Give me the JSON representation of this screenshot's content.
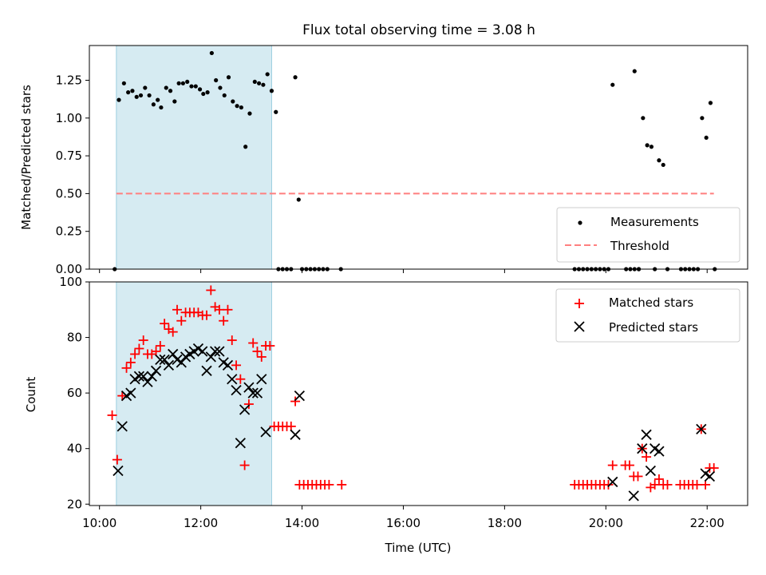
{
  "title": "Flux total observing time = 3.08 h",
  "chart_data": [
    {
      "type": "scatter",
      "ylabel": "Matched/Predicted stars",
      "xlim": [
        "09:48",
        "22:48"
      ],
      "ylim": [
        0,
        1.48
      ],
      "yticks": [
        "0.00",
        "0.25",
        "0.50",
        "0.75",
        "1.00",
        "1.25"
      ],
      "shaded_span": [
        "10:20",
        "13:24"
      ],
      "threshold": 0.5,
      "threshold_range": [
        "10:20",
        "22:08"
      ],
      "legend": {
        "placement": "lower-right",
        "entries": [
          "Measurements",
          "Threshold"
        ]
      },
      "series": [
        {
          "name": "Measurements",
          "points": [
            [
              "10:18",
              0
            ],
            [
              "10:23",
              1.12
            ],
            [
              "10:29",
              1.23
            ],
            [
              "10:34",
              1.17
            ],
            [
              "10:39",
              1.18
            ],
            [
              "10:44",
              1.14
            ],
            [
              "10:49",
              1.15
            ],
            [
              "10:54",
              1.2
            ],
            [
              "10:59",
              1.15
            ],
            [
              "11:04",
              1.09
            ],
            [
              "11:09",
              1.12
            ],
            [
              "11:13",
              1.07
            ],
            [
              "11:19",
              1.2
            ],
            [
              "11:24",
              1.18
            ],
            [
              "11:29",
              1.11
            ],
            [
              "11:34",
              1.23
            ],
            [
              "11:39",
              1.23
            ],
            [
              "11:44",
              1.24
            ],
            [
              "11:49",
              1.21
            ],
            [
              "11:54",
              1.21
            ],
            [
              "11:59",
              1.19
            ],
            [
              "12:03",
              1.16
            ],
            [
              "12:08",
              1.17
            ],
            [
              "12:13",
              1.43
            ],
            [
              "12:18",
              1.25
            ],
            [
              "12:23",
              1.2
            ],
            [
              "12:28",
              1.15
            ],
            [
              "12:33",
              1.27
            ],
            [
              "12:38",
              1.11
            ],
            [
              "12:43",
              1.08
            ],
            [
              "12:48",
              1.07
            ],
            [
              "12:53",
              0.81
            ],
            [
              "12:58",
              1.03
            ],
            [
              "13:04",
              1.24
            ],
            [
              "13:09",
              1.23
            ],
            [
              "13:14",
              1.22
            ],
            [
              "13:19",
              1.29
            ],
            [
              "13:24",
              1.18
            ],
            [
              "13:29",
              1.04
            ],
            [
              "13:32",
              0
            ],
            [
              "13:37",
              0
            ],
            [
              "13:42",
              0
            ],
            [
              "13:47",
              0
            ],
            [
              "13:52",
              1.27
            ],
            [
              "13:56",
              0.46
            ],
            [
              "14:00",
              0
            ],
            [
              "14:05",
              0
            ],
            [
              "14:10",
              0
            ],
            [
              "14:15",
              0
            ],
            [
              "14:20",
              0
            ],
            [
              "14:25",
              0
            ],
            [
              "14:30",
              0
            ],
            [
              "14:46",
              0
            ],
            [
              "19:23",
              0
            ],
            [
              "19:28",
              0
            ],
            [
              "19:33",
              0
            ],
            [
              "19:38",
              0
            ],
            [
              "19:43",
              0
            ],
            [
              "19:48",
              0
            ],
            [
              "19:53",
              0
            ],
            [
              "19:58",
              0
            ],
            [
              "20:03",
              0
            ],
            [
              "20:08",
              1.22
            ],
            [
              "20:24",
              0
            ],
            [
              "20:29",
              0
            ],
            [
              "20:34",
              0
            ],
            [
              "20:39",
              0
            ],
            [
              "20:34",
              1.31
            ],
            [
              "20:39",
              0
            ],
            [
              "20:44",
              1.0
            ],
            [
              "20:49",
              0.82
            ],
            [
              "20:54",
              0.81
            ],
            [
              "20:58",
              0
            ],
            [
              "21:03",
              0.72
            ],
            [
              "21:08",
              0.69
            ],
            [
              "21:13",
              0
            ],
            [
              "21:29",
              0
            ],
            [
              "21:34",
              0
            ],
            [
              "21:39",
              0
            ],
            [
              "21:44",
              0
            ],
            [
              "21:49",
              0
            ],
            [
              "21:54",
              1.0
            ],
            [
              "21:59",
              0.87
            ],
            [
              "22:04",
              1.1
            ],
            [
              "22:09",
              0
            ]
          ]
        }
      ]
    },
    {
      "type": "scatter",
      "xlabel": "Time (UTC)",
      "ylabel": "Count",
      "xlim": [
        "09:48",
        "22:48"
      ],
      "ylim": [
        19.5,
        100
      ],
      "xticks": [
        "10:00",
        "12:00",
        "14:00",
        "16:00",
        "18:00",
        "20:00",
        "22:00"
      ],
      "yticks": [
        "20",
        "40",
        "60",
        "80",
        "100"
      ],
      "shaded_span": [
        "10:20",
        "13:24"
      ],
      "legend": {
        "placement": "top-right",
        "entries": [
          "Matched stars",
          "Predicted stars"
        ]
      },
      "series": [
        {
          "name": "Matched stars",
          "points": [
            [
              "10:15",
              52
            ],
            [
              "10:21",
              36
            ],
            [
              "10:27",
              59
            ],
            [
              "10:32",
              69
            ],
            [
              "10:37",
              71
            ],
            [
              "10:42",
              74
            ],
            [
              "10:47",
              76
            ],
            [
              "10:52",
              79
            ],
            [
              "10:57",
              74
            ],
            [
              "11:02",
              74
            ],
            [
              "11:07",
              75
            ],
            [
              "11:12",
              77
            ],
            [
              "11:17",
              85
            ],
            [
              "11:22",
              83
            ],
            [
              "11:27",
              82
            ],
            [
              "11:32",
              90
            ],
            [
              "11:37",
              86
            ],
            [
              "11:42",
              89
            ],
            [
              "11:47",
              89
            ],
            [
              "11:52",
              89
            ],
            [
              "11:57",
              89
            ],
            [
              "12:02",
              88
            ],
            [
              "12:07",
              88
            ],
            [
              "12:12",
              97
            ],
            [
              "12:17",
              91
            ],
            [
              "12:22",
              90
            ],
            [
              "12:27",
              86
            ],
            [
              "12:32",
              90
            ],
            [
              "12:37",
              79
            ],
            [
              "12:42",
              70
            ],
            [
              "12:47",
              65
            ],
            [
              "12:52",
              34
            ],
            [
              "12:57",
              56
            ],
            [
              "13:02",
              78
            ],
            [
              "13:07",
              75
            ],
            [
              "13:12",
              73
            ],
            [
              "13:17",
              77
            ],
            [
              "13:22",
              77
            ],
            [
              "13:27",
              48
            ],
            [
              "13:32",
              48
            ],
            [
              "13:37",
              48
            ],
            [
              "13:42",
              48
            ],
            [
              "13:47",
              48
            ],
            [
              "13:52",
              57
            ],
            [
              "13:57",
              27
            ],
            [
              "14:02",
              27
            ],
            [
              "14:07",
              27
            ],
            [
              "14:12",
              27
            ],
            [
              "14:17",
              27
            ],
            [
              "14:22",
              27
            ],
            [
              "14:27",
              27
            ],
            [
              "14:32",
              27
            ],
            [
              "14:47",
              27
            ],
            [
              "19:23",
              27
            ],
            [
              "19:28",
              27
            ],
            [
              "19:33",
              27
            ],
            [
              "19:38",
              27
            ],
            [
              "19:43",
              27
            ],
            [
              "19:48",
              27
            ],
            [
              "19:53",
              27
            ],
            [
              "19:58",
              27
            ],
            [
              "20:03",
              27
            ],
            [
              "20:08",
              34
            ],
            [
              "20:23",
              34
            ],
            [
              "20:28",
              34
            ],
            [
              "20:33",
              30
            ],
            [
              "20:38",
              30
            ],
            [
              "20:43",
              40
            ],
            [
              "20:48",
              37
            ],
            [
              "20:53",
              26
            ],
            [
              "20:58",
              27
            ],
            [
              "21:03",
              29
            ],
            [
              "21:08",
              27
            ],
            [
              "21:13",
              27
            ],
            [
              "21:28",
              27
            ],
            [
              "21:33",
              27
            ],
            [
              "21:38",
              27
            ],
            [
              "21:43",
              27
            ],
            [
              "21:48",
              27
            ],
            [
              "21:53",
              47
            ],
            [
              "21:58",
              27
            ],
            [
              "22:03",
              33
            ],
            [
              "22:08",
              33
            ]
          ]
        },
        {
          "name": "Predicted stars",
          "points": [
            [
              "10:22",
              32
            ],
            [
              "10:27",
              48
            ],
            [
              "10:32",
              59
            ],
            [
              "10:37",
              60
            ],
            [
              "10:42",
              65
            ],
            [
              "10:47",
              66
            ],
            [
              "10:52",
              66
            ],
            [
              "10:57",
              64
            ],
            [
              "11:02",
              66
            ],
            [
              "11:07",
              68
            ],
            [
              "11:12",
              72
            ],
            [
              "11:17",
              72
            ],
            [
              "11:22",
              70
            ],
            [
              "11:27",
              74
            ],
            [
              "11:32",
              72
            ],
            [
              "11:37",
              71
            ],
            [
              "11:42",
              73
            ],
            [
              "11:47",
              74
            ],
            [
              "11:52",
              75
            ],
            [
              "11:57",
              76
            ],
            [
              "12:02",
              75
            ],
            [
              "12:07",
              68
            ],
            [
              "12:12",
              73
            ],
            [
              "12:17",
              75
            ],
            [
              "12:22",
              75
            ],
            [
              "12:27",
              71
            ],
            [
              "12:32",
              70
            ],
            [
              "12:37",
              65
            ],
            [
              "12:42",
              61
            ],
            [
              "12:47",
              42
            ],
            [
              "12:52",
              54
            ],
            [
              "12:57",
              62
            ],
            [
              "13:02",
              60
            ],
            [
              "13:07",
              60
            ],
            [
              "13:12",
              65
            ],
            [
              "13:17",
              46
            ],
            [
              "13:52",
              45
            ],
            [
              "13:57",
              59
            ],
            [
              "20:08",
              28
            ],
            [
              "20:33",
              23
            ],
            [
              "20:43",
              40
            ],
            [
              "20:48",
              45
            ],
            [
              "20:53",
              32
            ],
            [
              "20:58",
              40
            ],
            [
              "21:03",
              39
            ],
            [
              "21:53",
              47
            ],
            [
              "21:58",
              31
            ],
            [
              "22:03",
              30
            ]
          ]
        }
      ]
    }
  ],
  "colors": {
    "measurements": "#000000",
    "threshold": "#ff7f7f",
    "matched": "#ff0000",
    "predicted": "#000000",
    "shade": "#add8e6"
  }
}
